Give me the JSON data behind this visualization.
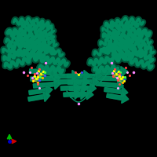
{
  "background_color": "#000000",
  "figure_size": [
    2.0,
    2.0
  ],
  "dpi": 100,
  "protein_color": "#008B5E",
  "protein_dark": "#005C3E",
  "protein_light": "#00A86B",
  "axis_colors": {
    "x": "#cc0000",
    "y": "#00bb00",
    "z": "#0000cc"
  },
  "helix_lw": 2.2,
  "helix_amplitude": 3.5
}
